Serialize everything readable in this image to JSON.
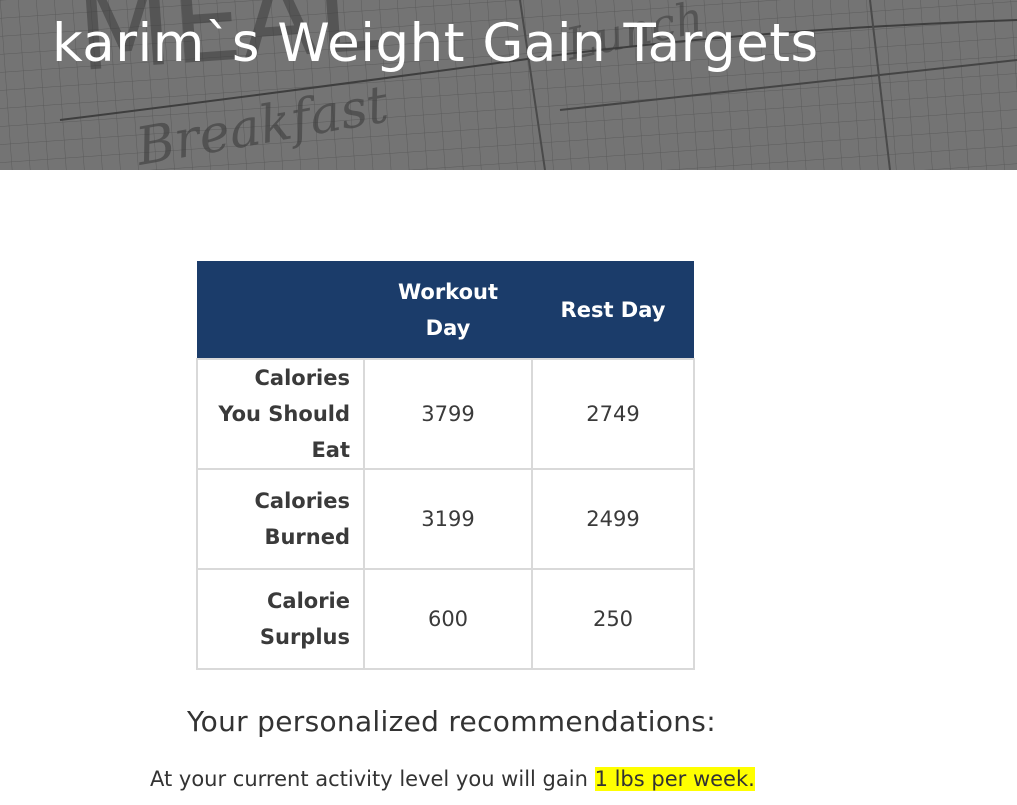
{
  "header": {
    "title": "karim`s Weight Gain Targets",
    "background_words": [
      "MEAL",
      "Breakfast",
      "Lunch"
    ]
  },
  "table": {
    "columns": [
      "Workout Day",
      "Rest Day"
    ],
    "rows": [
      {
        "label": "Calories You Should Eat",
        "workout": "3799",
        "rest": "2749"
      },
      {
        "label": "Calories Burned",
        "workout": "3199",
        "rest": "2499"
      },
      {
        "label": "Calorie Surplus",
        "workout": "600",
        "rest": "250"
      }
    ]
  },
  "recommendations": {
    "heading": "Your personalized recommendations:",
    "text_prefix": "At your current activity level you will gain ",
    "highlight": "1 lbs per week."
  },
  "colors": {
    "table_header_bg": "#1b3c6a",
    "highlight": "#ffff00",
    "hero_overlay": "#6b6b6b"
  }
}
